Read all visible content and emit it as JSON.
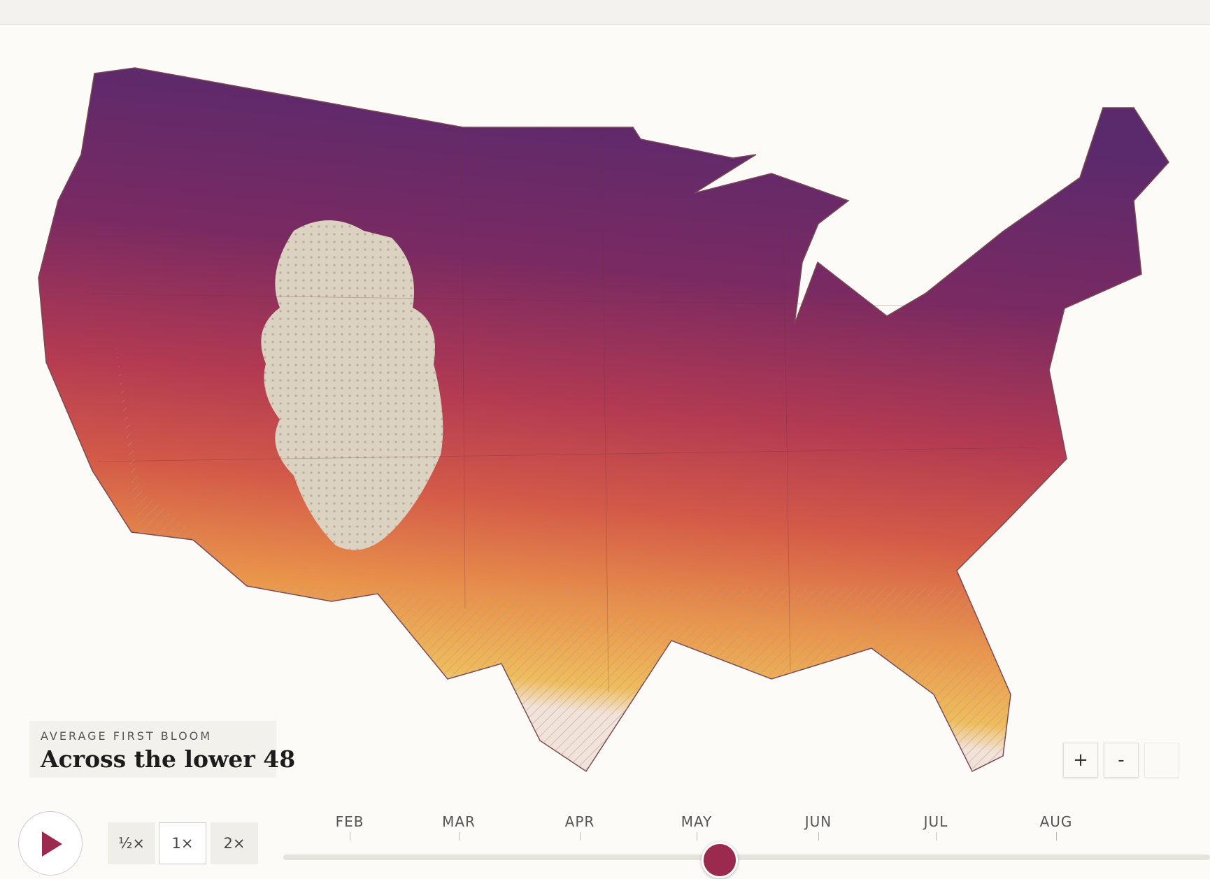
{
  "legend": {
    "eyebrow": "AVERAGE FIRST BLOOM",
    "title": "Across the lower 48"
  },
  "speed_buttons": [
    "½×",
    "1×",
    "2×"
  ],
  "zoom_buttons": [
    "+",
    "-"
  ],
  "timeline": {
    "months": [
      "FEB",
      "MAR",
      "APR",
      "MAY",
      "JUN",
      "JUL",
      "AUG"
    ]
  }
}
